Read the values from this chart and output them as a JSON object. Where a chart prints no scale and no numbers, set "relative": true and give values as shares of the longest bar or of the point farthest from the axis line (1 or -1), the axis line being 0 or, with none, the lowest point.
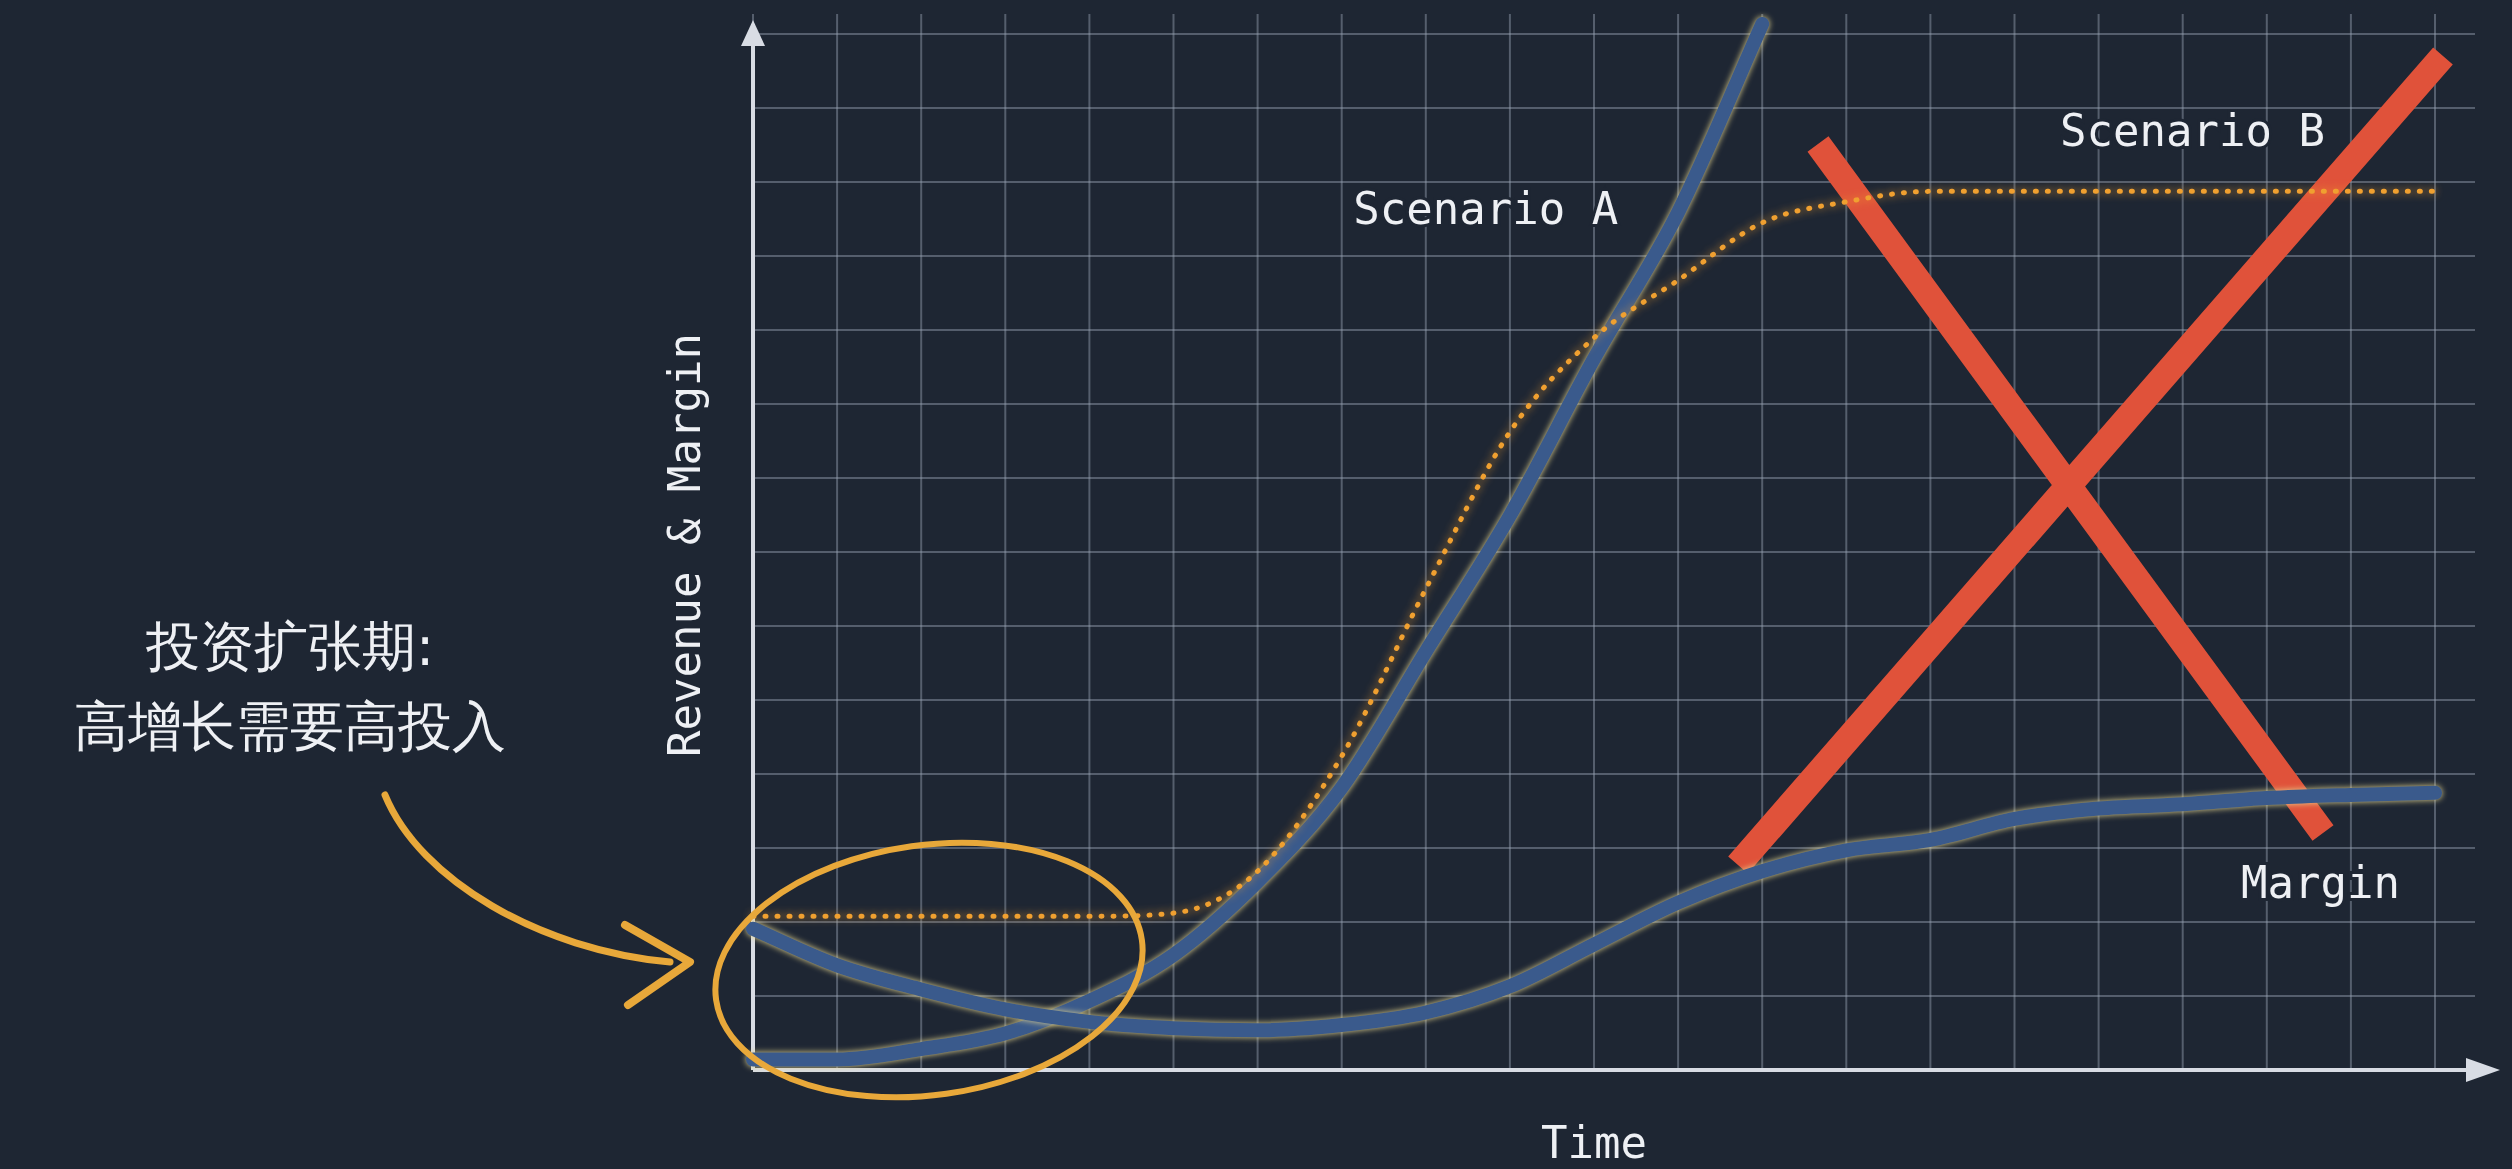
{
  "chart_data": {
    "type": "line",
    "relative": true,
    "xlabel": "Time",
    "ylabel": "Revenue & Margin",
    "grid": true,
    "categories": [
      null,
      null,
      null,
      null,
      null,
      null,
      null,
      null,
      null,
      null,
      null,
      null,
      null,
      null,
      null,
      null,
      null,
      null,
      null,
      null,
      null
    ],
    "series": [
      {
        "name": "Scenario A",
        "color": "#3a5a8c",
        "line_style": "solid",
        "values": [
          0.01,
          0.01,
          0.02,
          0.035,
          0.066,
          0.11,
          0.18,
          0.27,
          0.4,
          0.53,
          0.68,
          0.82,
          1,
          null,
          null,
          null,
          null,
          null,
          null,
          null,
          null
        ]
      },
      {
        "name": "Scenario B",
        "color": "#f0a030",
        "line_style": "dotted",
        "values": [
          0.147,
          0.147,
          0.147,
          0.147,
          0.147,
          0.15,
          0.19,
          0.3,
          0.46,
          0.61,
          0.7,
          0.755,
          0.81,
          0.83,
          0.84,
          0.84,
          0.84,
          0.84,
          0.84,
          0.84,
          0.84
        ]
      },
      {
        "name": "Margin",
        "color": "#3a5a8c",
        "line_style": "solid",
        "values": [
          0.135,
          0.1,
          0.077,
          0.058,
          0.046,
          0.04,
          0.038,
          0.043,
          0.055,
          0.08,
          0.12,
          0.16,
          0.19,
          0.21,
          0.22,
          0.24,
          0.25,
          0.254,
          0.26,
          0.263,
          0.265
        ]
      }
    ],
    "annotations": [
      "投资扩张期:",
      "高增长需要高投入"
    ]
  }
}
